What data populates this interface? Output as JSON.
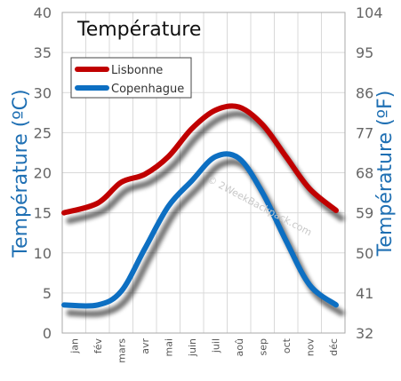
{
  "chart_data": {
    "type": "line",
    "title": "Température",
    "ylabel_left": "Température  (ºC)",
    "ylabel_right": "Température  (ºF)",
    "categories": [
      "jan",
      "fév",
      "mars",
      "avr",
      "mai",
      "juin",
      "juil",
      "aoû",
      "sep",
      "oct",
      "nov",
      "déc"
    ],
    "ylim": [
      0,
      40
    ],
    "yticks_left": [
      "0",
      "5",
      "10",
      "15",
      "20",
      "25",
      "30",
      "35",
      "40"
    ],
    "yticks_right": [
      "32",
      "41",
      "50",
      "59",
      "68",
      "77",
      "86",
      "95",
      "104"
    ],
    "grid": true,
    "legend_position": "top-left",
    "series": [
      {
        "name": "Lisbonne",
        "color": "#c00000",
        "values": [
          15,
          16.2,
          18.8,
          19.8,
          22,
          25.5,
          27.8,
          28.2,
          26,
          22,
          18,
          15.3
        ]
      },
      {
        "name": "Copenhague",
        "color": "#0d6fc2",
        "values": [
          3.5,
          3.5,
          5.2,
          10.5,
          15.8,
          19,
          22,
          21.8,
          17.5,
          11.5,
          6,
          3.5
        ]
      }
    ],
    "watermark": "© 2WeekBackpack.com"
  }
}
